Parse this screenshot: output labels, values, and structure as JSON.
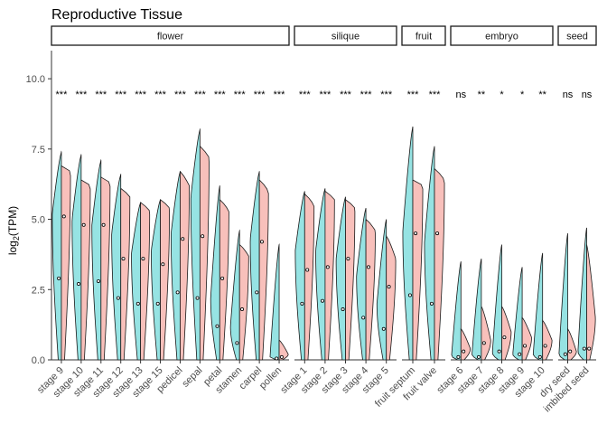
{
  "chart_data": {
    "type": "split-violin",
    "title": "Reproductive Tissue",
    "ylabel_main": "log",
    "ylabel_sub": "2",
    "ylabel_rest": "(TPM)",
    "xlabel": "",
    "ylim": [
      0,
      11
    ],
    "yticks": [
      0.0,
      2.5,
      5.0,
      7.5,
      10.0
    ],
    "ytick_labels": [
      "0.0",
      "2.5",
      "5.0",
      "7.5",
      "10.0"
    ],
    "grid": false,
    "colors": {
      "left": "#96e3e3",
      "right": "#f8c0bb",
      "outline": "#1a1a1a"
    },
    "panels": [
      {
        "name": "flower",
        "categories": [
          {
            "label": "stage 9",
            "sig": "***",
            "left": {
              "max": 7.4,
              "mode": 5.2,
              "median": 2.9
            },
            "right": {
              "max": 6.9,
              "mode": 6.7,
              "median": 5.1
            }
          },
          {
            "label": "stage 10",
            "sig": "***",
            "left": {
              "max": 7.3,
              "mode": 5.0,
              "median": 2.7
            },
            "right": {
              "max": 6.4,
              "mode": 6.2,
              "median": 4.8
            }
          },
          {
            "label": "stage 11",
            "sig": "***",
            "left": {
              "max": 7.1,
              "mode": 4.8,
              "median": 2.8
            },
            "right": {
              "max": 6.5,
              "mode": 6.3,
              "median": 4.8
            }
          },
          {
            "label": "stage 12",
            "sig": "***",
            "left": {
              "max": 6.6,
              "mode": 4.5,
              "median": 2.2
            },
            "right": {
              "max": 6.1,
              "mode": 5.8,
              "median": 3.6
            }
          },
          {
            "label": "stage 13",
            "sig": "***",
            "left": {
              "max": 5.6,
              "mode": 3.8,
              "median": 2.0
            },
            "right": {
              "max": 5.6,
              "mode": 5.3,
              "median": 3.6
            }
          },
          {
            "label": "stage 15",
            "sig": "***",
            "left": {
              "max": 5.7,
              "mode": 3.9,
              "median": 2.0
            },
            "right": {
              "max": 5.7,
              "mode": 5.4,
              "median": 3.4
            }
          },
          {
            "label": "pedicel",
            "sig": "***",
            "left": {
              "max": 6.7,
              "mode": 4.5,
              "median": 2.4
            },
            "right": {
              "max": 6.7,
              "mode": 6.2,
              "median": 4.3
            }
          },
          {
            "label": "sepal",
            "sig": "***",
            "left": {
              "max": 8.2,
              "mode": 5.8,
              "median": 2.2
            },
            "right": {
              "max": 7.6,
              "mode": 7.2,
              "median": 4.4
            }
          },
          {
            "label": "petal",
            "sig": "***",
            "left": {
              "max": 6.2,
              "mode": 2.2,
              "median": 1.2
            },
            "right": {
              "max": 5.7,
              "mode": 5.3,
              "median": 2.9
            }
          },
          {
            "label": "stamen",
            "sig": "***",
            "left": {
              "max": 4.6,
              "mode": 1.2,
              "median": 0.6
            },
            "right": {
              "max": 4.1,
              "mode": 3.7,
              "median": 1.8
            }
          },
          {
            "label": "carpel",
            "sig": "***",
            "left": {
              "max": 6.7,
              "mode": 4.3,
              "median": 2.4
            },
            "right": {
              "max": 6.4,
              "mode": 6.0,
              "median": 4.2
            }
          },
          {
            "label": "pollen",
            "sig": "***",
            "left": {
              "max": 4.1,
              "mode": 0.1,
              "median": 0.05
            },
            "right": {
              "max": 0.7,
              "mode": 0.2,
              "median": 0.1
            }
          }
        ]
      },
      {
        "name": "silique",
        "categories": [
          {
            "label": "stage 1",
            "sig": "***",
            "left": {
              "max": 6.0,
              "mode": 3.9,
              "median": 2.0
            },
            "right": {
              "max": 5.9,
              "mode": 5.5,
              "median": 3.2
            }
          },
          {
            "label": "stage 2",
            "sig": "***",
            "left": {
              "max": 6.1,
              "mode": 3.9,
              "median": 2.1
            },
            "right": {
              "max": 6.0,
              "mode": 5.7,
              "median": 3.3
            }
          },
          {
            "label": "stage 3",
            "sig": "***",
            "left": {
              "max": 5.8,
              "mode": 3.6,
              "median": 1.8
            },
            "right": {
              "max": 5.7,
              "mode": 5.4,
              "median": 3.6
            }
          },
          {
            "label": "stage 4",
            "sig": "***",
            "left": {
              "max": 5.4,
              "mode": 3.0,
              "median": 1.5
            },
            "right": {
              "max": 5.0,
              "mode": 4.6,
              "median": 3.3
            }
          },
          {
            "label": "stage 5",
            "sig": "***",
            "left": {
              "max": 5.0,
              "mode": 2.0,
              "median": 1.1
            },
            "right": {
              "max": 4.4,
              "mode": 3.6,
              "median": 2.6
            }
          }
        ]
      },
      {
        "name": "fruit",
        "categories": [
          {
            "label": "fruit septum",
            "sig": "***",
            "left": {
              "max": 8.3,
              "mode": 4.6,
              "median": 2.3
            },
            "right": {
              "max": 6.4,
              "mode": 6.2,
              "median": 4.5
            }
          },
          {
            "label": "fruit valve",
            "sig": "***",
            "left": {
              "max": 7.6,
              "mode": 4.2,
              "median": 2.0
            },
            "right": {
              "max": 6.8,
              "mode": 6.4,
              "median": 4.5
            }
          }
        ]
      },
      {
        "name": "embryo",
        "categories": [
          {
            "label": "stage 6",
            "sig": "ns",
            "left": {
              "max": 3.5,
              "mode": 0.15,
              "median": 0.1
            },
            "right": {
              "max": 1.1,
              "mode": 0.4,
              "median": 0.3
            }
          },
          {
            "label": "stage 7",
            "sig": "**",
            "left": {
              "max": 3.6,
              "mode": 0.2,
              "median": 0.1
            },
            "right": {
              "max": 1.9,
              "mode": 0.7,
              "median": 0.6
            }
          },
          {
            "label": "stage 8",
            "sig": "*",
            "left": {
              "max": 4.1,
              "mode": 0.25,
              "median": 0.3
            },
            "right": {
              "max": 1.9,
              "mode": 1.0,
              "median": 0.8
            }
          },
          {
            "label": "stage 9",
            "sig": "*",
            "left": {
              "max": 3.3,
              "mode": 0.2,
              "median": 0.2
            },
            "right": {
              "max": 1.5,
              "mode": 0.8,
              "median": 0.5
            }
          },
          {
            "label": "stage 10",
            "sig": "**",
            "left": {
              "max": 3.8,
              "mode": 0.2,
              "median": 0.1
            },
            "right": {
              "max": 1.4,
              "mode": 0.7,
              "median": 0.5
            }
          }
        ]
      },
      {
        "name": "seed",
        "categories": [
          {
            "label": "dry seed",
            "sig": "ns",
            "left": {
              "max": 4.5,
              "mode": 0.2,
              "median": 0.2
            },
            "right": {
              "max": 1.1,
              "mode": 0.3,
              "median": 0.3
            }
          },
          {
            "label": "imbibed seed",
            "sig": "ns",
            "left": {
              "max": 4.7,
              "mode": 0.3,
              "median": 0.4
            },
            "right": {
              "max": 4.1,
              "mode": 1.5,
              "median": 0.4
            }
          }
        ]
      }
    ]
  }
}
